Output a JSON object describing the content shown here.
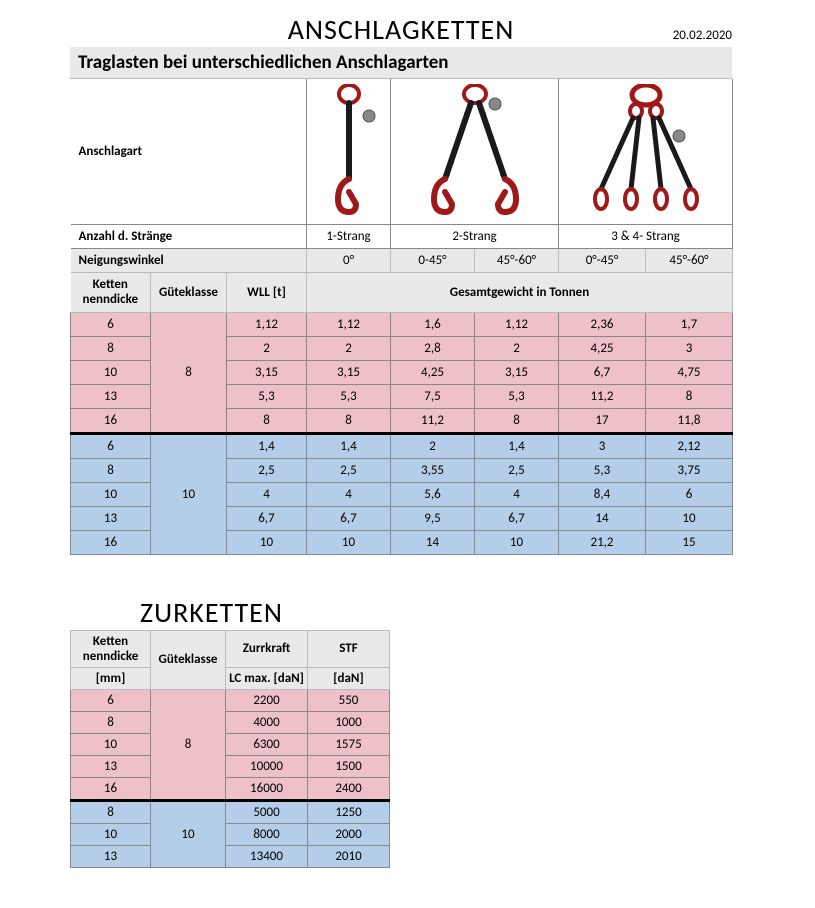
{
  "title": "ANSCHLAGKETTEN",
  "date": "20.02.2020",
  "subtitle": "Traglasten bei unterschiedlichen Anschlagarten",
  "labels": {
    "anschlagart": "Anschlagart",
    "anz_strange": "Anzahl d. Stränge",
    "neigung": "Neigungswinkel",
    "ketten": "Ketten nenndicke",
    "gute": "Güteklasse",
    "wll": "WLL [t]",
    "gesamt": "Gesamtgewicht in Tonnen"
  },
  "strands": [
    "1-Strang",
    "2-Strang",
    "3 & 4- Strang"
  ],
  "angles": [
    "0°",
    "0-45°",
    "45°-60°",
    "0°-45°",
    "45°-60°"
  ],
  "colors": {
    "pink": "#eec0c7",
    "blue": "#b4cde8",
    "header_bg": "#e9e9e9",
    "border": "#888888",
    "chain_red": "#a11818",
    "chain_black": "#1a1a1a"
  },
  "group8": {
    "label": "8",
    "rows": [
      {
        "d": "6",
        "w": "1,12",
        "v": [
          "1,12",
          "1,6",
          "1,12",
          "2,36",
          "1,7"
        ]
      },
      {
        "d": "8",
        "w": "2",
        "v": [
          "2",
          "2,8",
          "2",
          "4,25",
          "3"
        ]
      },
      {
        "d": "10",
        "w": "3,15",
        "v": [
          "3,15",
          "4,25",
          "3,15",
          "6,7",
          "4,75"
        ]
      },
      {
        "d": "13",
        "w": "5,3",
        "v": [
          "5,3",
          "7,5",
          "5,3",
          "11,2",
          "8"
        ]
      },
      {
        "d": "16",
        "w": "8",
        "v": [
          "8",
          "11,2",
          "8",
          "17",
          "11,8"
        ]
      }
    ]
  },
  "group10": {
    "label": "10",
    "rows": [
      {
        "d": "6",
        "w": "1,4",
        "v": [
          "1,4",
          "2",
          "1,4",
          "3",
          "2,12"
        ]
      },
      {
        "d": "8",
        "w": "2,5",
        "v": [
          "2,5",
          "3,55",
          "2,5",
          "5,3",
          "3,75"
        ]
      },
      {
        "d": "10",
        "w": "4",
        "v": [
          "4",
          "5,6",
          "4",
          "8,4",
          "6"
        ]
      },
      {
        "d": "13",
        "w": "6,7",
        "v": [
          "6,7",
          "9,5",
          "6,7",
          "14",
          "10"
        ]
      },
      {
        "d": "16",
        "w": "10",
        "v": [
          "10",
          "14",
          "10",
          "21,2",
          "15"
        ]
      }
    ]
  },
  "title2": "ZURKETTEN",
  "zlabels": {
    "ketten": "Ketten nenndicke",
    "mm": "[mm]",
    "gute": "Güteklasse",
    "zurr": "Zurrkraft",
    "lc": "LC max. [daN]",
    "stf": "STF",
    "dan": "[daN]"
  },
  "zgroup8": {
    "label": "8",
    "rows": [
      {
        "d": "6",
        "lc": "2200",
        "stf": "550"
      },
      {
        "d": "8",
        "lc": "4000",
        "stf": "1000"
      },
      {
        "d": "10",
        "lc": "6300",
        "stf": "1575"
      },
      {
        "d": "13",
        "lc": "10000",
        "stf": "1500"
      },
      {
        "d": "16",
        "lc": "16000",
        "stf": "2400"
      }
    ]
  },
  "zgroup10": {
    "label": "10",
    "rows": [
      {
        "d": "8",
        "lc": "5000",
        "stf": "1250"
      },
      {
        "d": "10",
        "lc": "8000",
        "stf": "2000"
      },
      {
        "d": "13",
        "lc": "13400",
        "stf": "2010"
      }
    ]
  }
}
